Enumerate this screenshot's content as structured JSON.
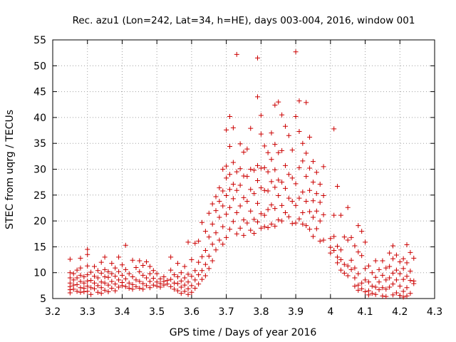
{
  "chart_data": {
    "type": "scatter",
    "title": "Rec. azu1 (Lon=242, Lat=34, h=HE), days 003-004, 2016, window 001",
    "xlabel": "GPS time / Days of year 2016",
    "ylabel": "STEC from uqrg / TECUs",
    "xlim": [
      3.2,
      4.3
    ],
    "ylim": [
      5,
      55
    ],
    "xticks": [
      "3.2",
      "3.3",
      "3.4",
      "3.5",
      "3.6",
      "3.7",
      "3.8",
      "3.9",
      "4",
      "4.1",
      "4.2",
      "4.3"
    ],
    "yticks": [
      "5",
      "10",
      "15",
      "20",
      "25",
      "30",
      "35",
      "40",
      "45",
      "50",
      "55"
    ],
    "grid": true,
    "marker": "+",
    "color": "#cc0000",
    "points": [
      [
        3.25,
        12.6
      ],
      [
        3.25,
        10.0
      ],
      [
        3.25,
        9.0
      ],
      [
        3.25,
        8.0
      ],
      [
        3.25,
        7.3
      ],
      [
        3.25,
        6.7
      ],
      [
        3.25,
        6.1
      ],
      [
        3.26,
        9.8
      ],
      [
        3.26,
        8.6
      ],
      [
        3.26,
        7.6
      ],
      [
        3.26,
        6.8
      ],
      [
        3.27,
        10.5
      ],
      [
        3.27,
        9.0
      ],
      [
        3.27,
        7.7
      ],
      [
        3.27,
        6.4
      ],
      [
        3.28,
        12.8
      ],
      [
        3.28,
        10.9
      ],
      [
        3.28,
        9.5
      ],
      [
        3.28,
        8.3
      ],
      [
        3.28,
        7.1
      ],
      [
        3.28,
        6.2
      ],
      [
        3.29,
        9.2
      ],
      [
        3.29,
        8.0
      ],
      [
        3.29,
        7.0
      ],
      [
        3.29,
        6.3
      ],
      [
        3.3,
        14.5
      ],
      [
        3.3,
        13.5
      ],
      [
        3.3,
        11.3
      ],
      [
        3.3,
        9.6
      ],
      [
        3.3,
        8.4
      ],
      [
        3.3,
        7.4
      ],
      [
        3.3,
        6.4
      ],
      [
        3.31,
        10.1
      ],
      [
        3.31,
        8.5
      ],
      [
        3.31,
        7.1
      ],
      [
        3.31,
        5.8
      ],
      [
        3.32,
        11.2
      ],
      [
        3.32,
        9.3
      ],
      [
        3.32,
        8.0
      ],
      [
        3.32,
        6.9
      ],
      [
        3.33,
        10.4
      ],
      [
        3.33,
        9.0
      ],
      [
        3.33,
        7.5
      ],
      [
        3.33,
        6.2
      ],
      [
        3.34,
        12.0
      ],
      [
        3.34,
        9.9
      ],
      [
        3.34,
        8.2
      ],
      [
        3.34,
        7.1
      ],
      [
        3.34,
        6.0
      ],
      [
        3.35,
        13.0
      ],
      [
        3.35,
        10.6
      ],
      [
        3.35,
        9.2
      ],
      [
        3.35,
        8.0
      ],
      [
        3.35,
        6.6
      ],
      [
        3.36,
        10.2
      ],
      [
        3.36,
        9.1
      ],
      [
        3.36,
        7.6
      ],
      [
        3.36,
        6.3
      ],
      [
        3.37,
        11.8
      ],
      [
        3.37,
        9.8
      ],
      [
        3.37,
        8.3
      ],
      [
        3.37,
        7.0
      ],
      [
        3.38,
        10.9
      ],
      [
        3.38,
        9.3
      ],
      [
        3.38,
        7.8
      ],
      [
        3.38,
        6.5
      ],
      [
        3.39,
        13.0
      ],
      [
        3.39,
        10.2
      ],
      [
        3.39,
        8.6
      ],
      [
        3.39,
        7.2
      ],
      [
        3.4,
        11.5
      ],
      [
        3.4,
        9.5
      ],
      [
        3.4,
        8.1
      ],
      [
        3.4,
        7.5
      ],
      [
        3.41,
        15.3
      ],
      [
        3.41,
        10.6
      ],
      [
        3.41,
        8.8
      ],
      [
        3.41,
        7.3
      ],
      [
        3.42,
        9.8
      ],
      [
        3.42,
        8.0
      ],
      [
        3.42,
        7.0
      ],
      [
        3.43,
        12.4
      ],
      [
        3.43,
        9.2
      ],
      [
        3.43,
        7.7
      ],
      [
        3.43,
        6.8
      ],
      [
        3.44,
        11.0
      ],
      [
        3.44,
        8.6
      ],
      [
        3.44,
        7.3
      ],
      [
        3.45,
        12.3
      ],
      [
        3.45,
        10.2
      ],
      [
        3.45,
        8.3
      ],
      [
        3.45,
        7.0
      ],
      [
        3.46,
        11.4
      ],
      [
        3.46,
        9.5
      ],
      [
        3.46,
        7.9
      ],
      [
        3.46,
        6.8
      ],
      [
        3.47,
        12.1
      ],
      [
        3.47,
        9.0
      ],
      [
        3.47,
        7.5
      ],
      [
        3.48,
        11.2
      ],
      [
        3.48,
        9.8
      ],
      [
        3.48,
        8.3
      ],
      [
        3.48,
        7.1
      ],
      [
        3.49,
        10.4
      ],
      [
        3.49,
        8.9
      ],
      [
        3.49,
        7.6
      ],
      [
        3.5,
        9.8
      ],
      [
        3.5,
        8.2
      ],
      [
        3.5,
        7.4
      ],
      [
        3.51,
        8.8
      ],
      [
        3.51,
        7.9
      ],
      [
        3.51,
        7.2
      ],
      [
        3.52,
        9.2
      ],
      [
        3.52,
        8.3
      ],
      [
        3.52,
        7.6
      ],
      [
        3.53,
        8.5
      ],
      [
        3.53,
        7.8
      ],
      [
        3.54,
        13.0
      ],
      [
        3.54,
        10.5
      ],
      [
        3.54,
        8.7
      ],
      [
        3.54,
        7.3
      ],
      [
        3.55,
        9.6
      ],
      [
        3.55,
        8.0
      ],
      [
        3.55,
        6.8
      ],
      [
        3.56,
        11.8
      ],
      [
        3.56,
        9.2
      ],
      [
        3.56,
        7.9
      ],
      [
        3.56,
        6.5
      ],
      [
        3.57,
        10.0
      ],
      [
        3.57,
        8.4
      ],
      [
        3.57,
        7.2
      ],
      [
        3.57,
        6.0
      ],
      [
        3.58,
        11.2
      ],
      [
        3.58,
        9.0
      ],
      [
        3.58,
        7.6
      ],
      [
        3.58,
        6.4
      ],
      [
        3.59,
        15.9
      ],
      [
        3.59,
        9.7
      ],
      [
        3.59,
        8.2
      ],
      [
        3.59,
        6.9
      ],
      [
        3.59,
        5.8
      ],
      [
        3.6,
        12.5
      ],
      [
        3.6,
        9.3
      ],
      [
        3.6,
        7.5
      ],
      [
        3.6,
        6.2
      ],
      [
        3.61,
        15.7
      ],
      [
        3.61,
        10.4
      ],
      [
        3.61,
        8.6
      ],
      [
        3.61,
        7.0
      ],
      [
        3.62,
        16.1
      ],
      [
        3.62,
        12.0
      ],
      [
        3.62,
        9.6
      ],
      [
        3.62,
        7.8
      ],
      [
        3.63,
        19.7
      ],
      [
        3.63,
        13.1
      ],
      [
        3.63,
        10.4
      ],
      [
        3.63,
        8.7
      ],
      [
        3.64,
        18.0
      ],
      [
        3.64,
        14.3
      ],
      [
        3.64,
        11.6
      ],
      [
        3.64,
        9.4
      ],
      [
        3.65,
        21.5
      ],
      [
        3.65,
        16.9
      ],
      [
        3.65,
        13.2
      ],
      [
        3.65,
        10.8
      ],
      [
        3.66,
        23.3
      ],
      [
        3.66,
        19.4
      ],
      [
        3.66,
        15.5
      ],
      [
        3.66,
        12.3
      ],
      [
        3.67,
        24.7
      ],
      [
        3.67,
        22.0
      ],
      [
        3.67,
        17.7
      ],
      [
        3.67,
        14.4
      ],
      [
        3.68,
        26.4
      ],
      [
        3.68,
        23.8
      ],
      [
        3.68,
        20.7
      ],
      [
        3.68,
        16.3
      ],
      [
        3.69,
        30.0
      ],
      [
        3.69,
        25.8
      ],
      [
        3.69,
        22.9
      ],
      [
        3.69,
        18.9
      ],
      [
        3.69,
        15.5
      ],
      [
        3.7,
        37.6
      ],
      [
        3.7,
        30.6
      ],
      [
        3.7,
        28.3
      ],
      [
        3.7,
        24.9
      ],
      [
        3.7,
        21.3
      ],
      [
        3.7,
        16.8
      ],
      [
        3.71,
        40.2
      ],
      [
        3.71,
        34.4
      ],
      [
        3.71,
        29.0
      ],
      [
        3.71,
        26.1
      ],
      [
        3.71,
        22.6
      ],
      [
        3.71,
        18.4
      ],
      [
        3.72,
        38.0
      ],
      [
        3.72,
        31.3
      ],
      [
        3.72,
        27.1
      ],
      [
        3.72,
        24.3
      ],
      [
        3.72,
        19.9
      ],
      [
        3.73,
        52.2
      ],
      [
        3.73,
        29.5
      ],
      [
        3.73,
        25.9
      ],
      [
        3.73,
        21.6
      ],
      [
        3.73,
        17.5
      ],
      [
        3.74,
        34.9
      ],
      [
        3.74,
        30.1
      ],
      [
        3.74,
        26.9
      ],
      [
        3.74,
        22.9
      ],
      [
        3.74,
        18.6
      ],
      [
        3.75,
        33.3
      ],
      [
        3.75,
        28.7
      ],
      [
        3.75,
        24.5
      ],
      [
        3.75,
        20.2
      ],
      [
        3.75,
        17.2
      ],
      [
        3.76,
        33.9
      ],
      [
        3.76,
        28.6
      ],
      [
        3.76,
        23.8
      ],
      [
        3.76,
        19.6
      ],
      [
        3.77,
        37.9
      ],
      [
        3.77,
        30.0
      ],
      [
        3.77,
        26.1
      ],
      [
        3.77,
        21.9
      ],
      [
        3.77,
        18.2
      ],
      [
        3.78,
        29.8
      ],
      [
        3.78,
        25.3
      ],
      [
        3.78,
        20.3
      ],
      [
        3.78,
        17.6
      ],
      [
        3.79,
        51.5
      ],
      [
        3.79,
        44.0
      ],
      [
        3.79,
        30.7
      ],
      [
        3.79,
        27.8
      ],
      [
        3.79,
        23.4
      ],
      [
        3.79,
        19.8
      ],
      [
        3.8,
        40.4
      ],
      [
        3.8,
        36.8
      ],
      [
        3.8,
        30.2
      ],
      [
        3.8,
        26.4
      ],
      [
        3.8,
        21.4
      ],
      [
        3.8,
        18.6
      ],
      [
        3.81,
        34.5
      ],
      [
        3.81,
        30.3
      ],
      [
        3.81,
        25.9
      ],
      [
        3.81,
        21.1
      ],
      [
        3.81,
        18.9
      ],
      [
        3.82,
        33.2
      ],
      [
        3.82,
        29.5
      ],
      [
        3.82,
        25.8
      ],
      [
        3.82,
        22.2
      ],
      [
        3.82,
        18.7
      ],
      [
        3.83,
        37.0
      ],
      [
        3.83,
        31.9
      ],
      [
        3.83,
        27.6
      ],
      [
        3.83,
        23.1
      ],
      [
        3.83,
        19.4
      ],
      [
        3.84,
        42.4
      ],
      [
        3.84,
        34.8
      ],
      [
        3.84,
        29.9
      ],
      [
        3.84,
        26.5
      ],
      [
        3.84,
        22.4
      ],
      [
        3.84,
        19.0
      ],
      [
        3.85,
        43.0
      ],
      [
        3.85,
        33.2
      ],
      [
        3.85,
        27.9
      ],
      [
        3.85,
        24.9
      ],
      [
        3.85,
        20.2
      ],
      [
        3.86,
        40.5
      ],
      [
        3.86,
        33.6
      ],
      [
        3.86,
        27.5
      ],
      [
        3.86,
        23.0
      ],
      [
        3.86,
        20.0
      ],
      [
        3.87,
        38.3
      ],
      [
        3.87,
        30.7
      ],
      [
        3.87,
        26.3
      ],
      [
        3.87,
        21.6
      ],
      [
        3.88,
        36.5
      ],
      [
        3.88,
        29.0
      ],
      [
        3.88,
        24.4
      ],
      [
        3.88,
        20.8
      ],
      [
        3.89,
        33.7
      ],
      [
        3.89,
        28.3
      ],
      [
        3.89,
        23.8
      ],
      [
        3.89,
        19.5
      ],
      [
        3.9,
        52.7
      ],
      [
        3.9,
        40.2
      ],
      [
        3.9,
        27.2
      ],
      [
        3.9,
        23.0
      ],
      [
        3.9,
        19.6
      ],
      [
        3.91,
        43.2
      ],
      [
        3.91,
        37.3
      ],
      [
        3.91,
        30.3
      ],
      [
        3.91,
        24.4
      ],
      [
        3.91,
        20.4
      ],
      [
        3.92,
        35.0
      ],
      [
        3.92,
        31.6
      ],
      [
        3.92,
        25.6
      ],
      [
        3.92,
        21.6
      ],
      [
        3.92,
        19.4
      ],
      [
        3.93,
        42.9
      ],
      [
        3.93,
        33.1
      ],
      [
        3.93,
        28.6
      ],
      [
        3.93,
        23.8
      ],
      [
        3.93,
        19.1
      ],
      [
        3.94,
        36.2
      ],
      [
        3.94,
        30.2
      ],
      [
        3.94,
        25.9
      ],
      [
        3.94,
        21.8
      ],
      [
        3.94,
        18.4
      ],
      [
        3.95,
        31.5
      ],
      [
        3.95,
        27.5
      ],
      [
        3.95,
        23.9
      ],
      [
        3.95,
        20.7
      ],
      [
        3.95,
        17.0
      ],
      [
        3.96,
        29.4
      ],
      [
        3.96,
        25.3
      ],
      [
        3.96,
        21.9
      ],
      [
        3.96,
        18.5
      ],
      [
        3.97,
        27.1
      ],
      [
        3.97,
        23.6
      ],
      [
        3.97,
        20.0
      ],
      [
        3.97,
        16.1
      ],
      [
        3.98,
        30.5
      ],
      [
        3.98,
        24.9
      ],
      [
        3.98,
        21.2
      ],
      [
        3.98,
        16.3
      ],
      [
        4.0,
        16.6
      ],
      [
        4.0,
        14.9
      ],
      [
        4.0,
        13.8
      ],
      [
        4.01,
        37.8
      ],
      [
        4.01,
        21.1
      ],
      [
        4.01,
        17.0
      ],
      [
        4.01,
        14.3
      ],
      [
        4.02,
        26.7
      ],
      [
        4.02,
        15.1
      ],
      [
        4.02,
        13.0
      ],
      [
        4.02,
        11.9
      ],
      [
        4.03,
        21.1
      ],
      [
        4.03,
        14.4
      ],
      [
        4.03,
        12.5
      ],
      [
        4.03,
        10.5
      ],
      [
        4.04,
        16.9
      ],
      [
        4.04,
        11.6
      ],
      [
        4.04,
        9.9
      ],
      [
        4.05,
        22.6
      ],
      [
        4.05,
        16.3
      ],
      [
        4.05,
        11.3
      ],
      [
        4.05,
        9.4
      ],
      [
        4.06,
        16.8
      ],
      [
        4.06,
        12.4
      ],
      [
        4.06,
        10.6
      ],
      [
        4.07,
        15.2
      ],
      [
        4.07,
        10.9
      ],
      [
        4.07,
        9.0
      ],
      [
        4.07,
        7.4
      ],
      [
        4.08,
        19.1
      ],
      [
        4.08,
        14.0
      ],
      [
        4.08,
        9.8
      ],
      [
        4.08,
        7.6
      ],
      [
        4.08,
        6.6
      ],
      [
        4.09,
        18.0
      ],
      [
        4.09,
        13.3
      ],
      [
        4.09,
        8.0
      ],
      [
        4.09,
        6.9
      ],
      [
        4.1,
        15.9
      ],
      [
        4.1,
        10.8
      ],
      [
        4.1,
        8.6
      ],
      [
        4.1,
        6.3
      ],
      [
        4.11,
        11.3
      ],
      [
        4.11,
        8.2
      ],
      [
        4.11,
        6.5
      ],
      [
        4.11,
        5.7
      ],
      [
        4.12,
        10.0
      ],
      [
        4.12,
        7.4
      ],
      [
        4.12,
        6.0
      ],
      [
        4.13,
        12.3
      ],
      [
        4.13,
        9.1
      ],
      [
        4.13,
        7.2
      ],
      [
        4.13,
        5.8
      ],
      [
        4.14,
        10.6
      ],
      [
        4.14,
        8.2
      ],
      [
        4.14,
        6.7
      ],
      [
        4.15,
        12.3
      ],
      [
        4.15,
        9.5
      ],
      [
        4.15,
        7.1
      ],
      [
        4.15,
        5.5
      ],
      [
        4.16,
        10.9
      ],
      [
        4.16,
        8.6
      ],
      [
        4.16,
        6.8
      ],
      [
        4.16,
        5.4
      ],
      [
        4.17,
        13.8
      ],
      [
        4.17,
        11.2
      ],
      [
        4.17,
        9.0
      ],
      [
        4.17,
        7.2
      ],
      [
        4.18,
        15.2
      ],
      [
        4.18,
        12.7
      ],
      [
        4.18,
        9.9
      ],
      [
        4.18,
        7.8
      ],
      [
        4.18,
        5.7
      ],
      [
        4.19,
        13.4
      ],
      [
        4.19,
        10.5
      ],
      [
        4.19,
        8.6
      ],
      [
        4.19,
        6.1
      ],
      [
        4.2,
        12.1
      ],
      [
        4.2,
        9.8
      ],
      [
        4.2,
        7.4
      ],
      [
        4.2,
        5.6
      ],
      [
        4.21,
        12.7
      ],
      [
        4.21,
        10.8
      ],
      [
        4.21,
        8.7
      ],
      [
        4.21,
        6.4
      ],
      [
        4.21,
        5.3
      ],
      [
        4.22,
        15.4
      ],
      [
        4.22,
        11.9
      ],
      [
        4.22,
        9.3
      ],
      [
        4.22,
        7.1
      ],
      [
        4.22,
        5.5
      ],
      [
        4.23,
        13.9
      ],
      [
        4.23,
        10.3
      ],
      [
        4.23,
        8.5
      ],
      [
        4.23,
        6.0
      ],
      [
        4.24,
        12.8
      ],
      [
        4.24,
        8.4
      ],
      [
        4.24,
        7.9
      ]
    ]
  }
}
